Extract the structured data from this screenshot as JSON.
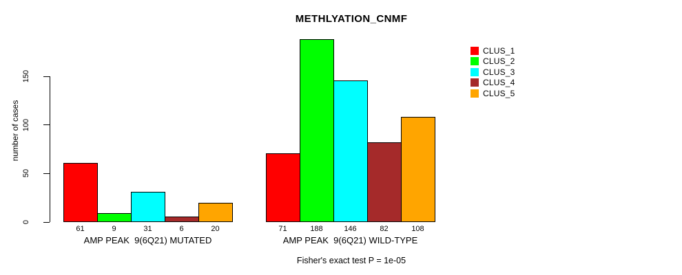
{
  "title": "METHLYATION_CNMF",
  "y_axis": {
    "label": "number of cases"
  },
  "footer": "Fisher's exact test P = 1e-05",
  "chart_data": {
    "type": "bar",
    "title": "METHLYATION_CNMF",
    "xlabel": "",
    "ylabel": "number of cases",
    "ylim": [
      0,
      150
    ],
    "y_ticks": [
      0,
      50,
      100,
      150
    ],
    "grid": false,
    "legend_position": "top-right",
    "categories": [
      "AMP PEAK  9(6Q21) MUTATED",
      "AMP PEAK  9(6Q21) WILD-TYPE"
    ],
    "clusters": [
      {
        "name": "CLUS_1",
        "color": "#FF0000"
      },
      {
        "name": "CLUS_2",
        "color": "#00FF00"
      },
      {
        "name": "CLUS_3",
        "color": "#00FFFF"
      },
      {
        "name": "CLUS_4",
        "color": "#A52A2A"
      },
      {
        "name": "CLUS_5",
        "color": "#FFA500"
      }
    ],
    "series": [
      {
        "name": "CLUS_1",
        "values": [
          61,
          71
        ]
      },
      {
        "name": "CLUS_2",
        "values": [
          9,
          188
        ]
      },
      {
        "name": "CLUS_3",
        "values": [
          31,
          146
        ]
      },
      {
        "name": "CLUS_4",
        "values": [
          6,
          82
        ]
      },
      {
        "name": "CLUS_5",
        "values": [
          20,
          108
        ]
      }
    ],
    "bar_value_labels": [
      [
        61,
        9,
        31,
        6,
        20
      ],
      [
        71,
        188,
        146,
        82,
        108
      ]
    ],
    "annotation": "Fisher's exact test P = 1e-05"
  }
}
